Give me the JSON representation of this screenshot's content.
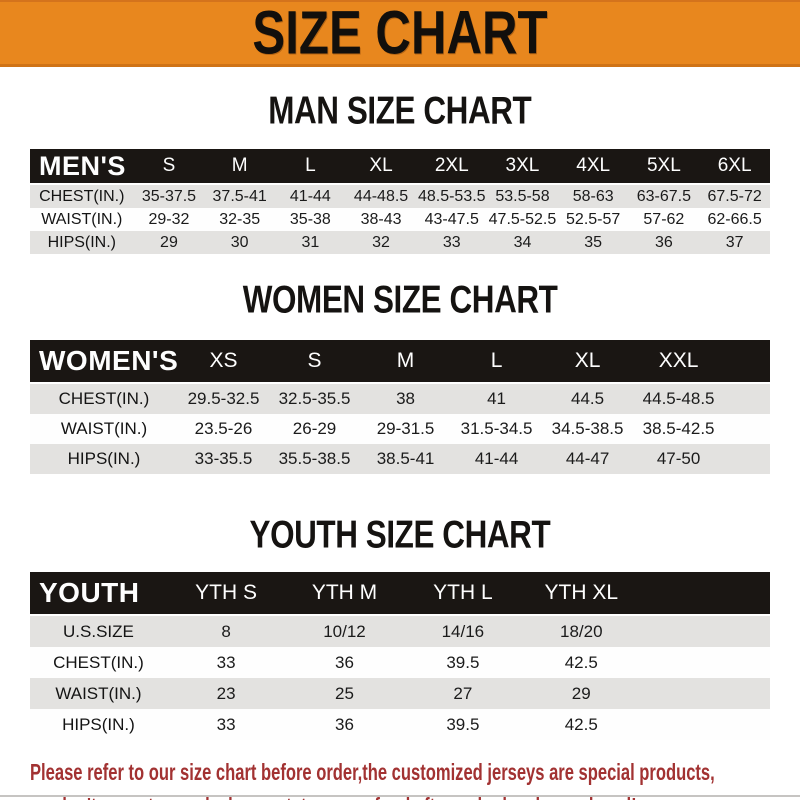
{
  "banner": {
    "title": "SIZE CHART"
  },
  "theme": {
    "accent_orange": "#E8871E",
    "bar_black": "#1A1613",
    "stripe_gray": "#E3E2E0",
    "footer_red": "#A23232"
  },
  "sections": [
    {
      "title": "MAN SIZE CHART",
      "table": {
        "label": "MEN'S",
        "columns": [
          "S",
          "M",
          "L",
          "XL",
          "2XL",
          "3XL",
          "4XL",
          "5XL",
          "6XL"
        ],
        "rows": [
          {
            "label": "CHEST(IN.)",
            "values": [
              "35-37.5",
              "37.5-41",
              "41-44",
              "44-48.5",
              "48.5-53.5",
              "53.5-58",
              "58-63",
              "63-67.5",
              "67.5-72"
            ]
          },
          {
            "label": "WAIST(IN.)",
            "values": [
              "29-32",
              "32-35",
              "35-38",
              "38-43",
              "43-47.5",
              "47.5-52.5",
              "52.5-57",
              "57-62",
              "62-66.5"
            ]
          },
          {
            "label": "HIPS(IN.)",
            "values": [
              "29",
              "30",
              "31",
              "32",
              "33",
              "34",
              "35",
              "36",
              "37"
            ]
          }
        ]
      }
    },
    {
      "title": "WOMEN SIZE CHART",
      "table": {
        "label": "WOMEN'S",
        "columns": [
          "XS",
          "S",
          "M",
          "L",
          "XL",
          "XXL"
        ],
        "rows": [
          {
            "label": "CHEST(IN.)",
            "values": [
              "29.5-32.5",
              "32.5-35.5",
              "38",
              "41",
              "44.5",
              "44.5-48.5"
            ]
          },
          {
            "label": "WAIST(IN.)",
            "values": [
              "23.5-26",
              "26-29",
              "29-31.5",
              "31.5-34.5",
              "34.5-38.5",
              "38.5-42.5"
            ]
          },
          {
            "label": "HIPS(IN.)",
            "values": [
              "33-35.5",
              "35.5-38.5",
              "38.5-41",
              "41-44",
              "44-47",
              "47-50"
            ]
          }
        ]
      }
    },
    {
      "title": "YOUTH SIZE CHART",
      "table": {
        "label": "YOUTH",
        "columns": [
          "YTH S",
          "YTH M",
          "YTH L",
          "YTH XL"
        ],
        "rows": [
          {
            "label": "U.S.SIZE",
            "values": [
              "8",
              "10/12",
              "14/16",
              "18/20"
            ]
          },
          {
            "label": "CHEST(IN.)",
            "values": [
              "33",
              "36",
              "39.5",
              "42.5"
            ]
          },
          {
            "label": "WAIST(IN.)",
            "values": [
              "23",
              "25",
              "27",
              "29"
            ]
          },
          {
            "label": "HIPS(IN.)",
            "values": [
              "33",
              "36",
              "39.5",
              "42.5"
            ]
          }
        ]
      }
    }
  ],
  "footer": {
    "line1": "Please refer to our size chart before order,the customized jerseys are special products,",
    "line2": "we don't accept cancel, change, teturn or refund after order has been placed!"
  }
}
